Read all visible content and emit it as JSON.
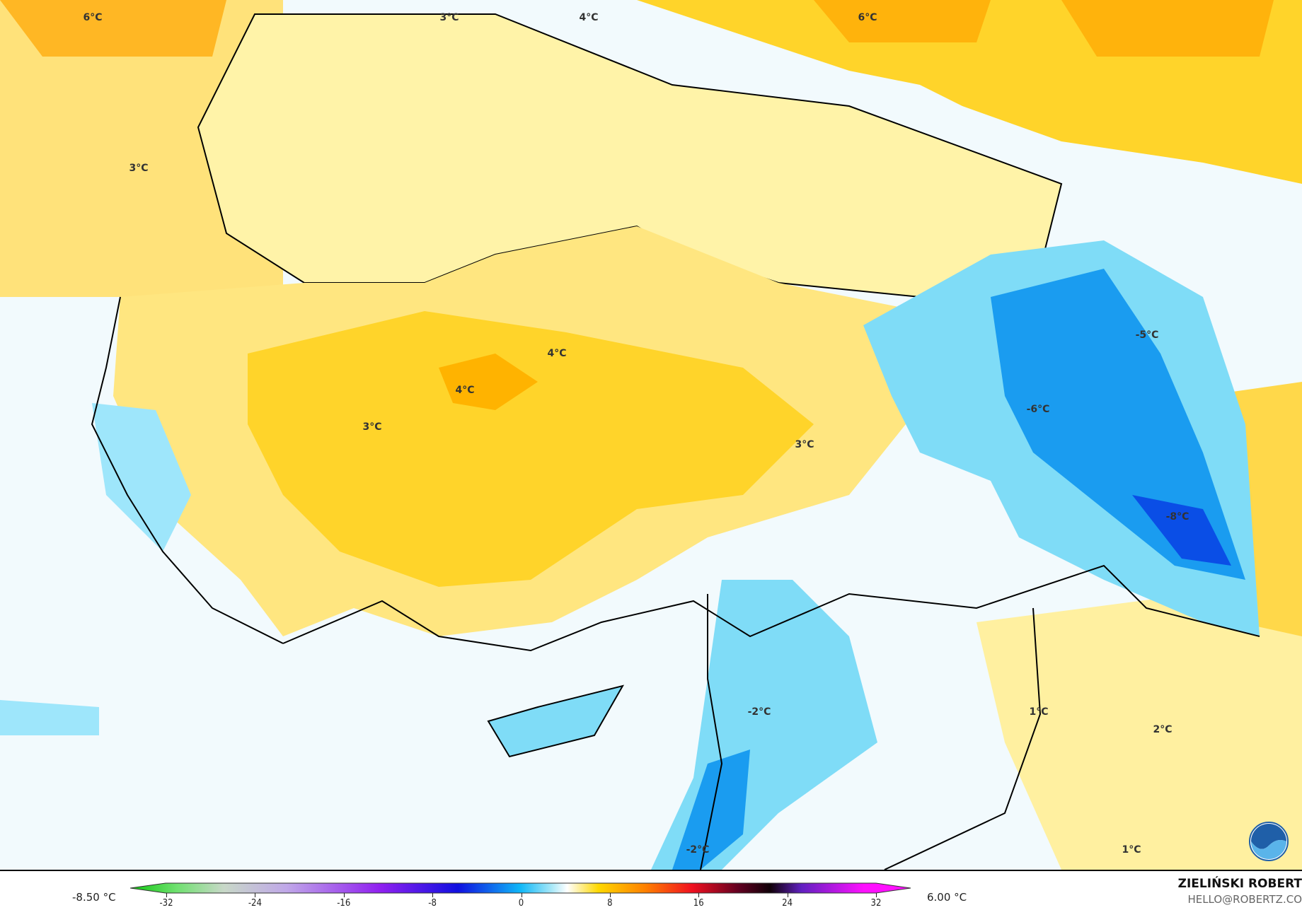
{
  "map": {
    "labels": [
      {
        "text": "6°C"
      },
      {
        "text": "3°C"
      },
      {
        "text": "4°C"
      },
      {
        "text": "6°C"
      },
      {
        "text": "3°C"
      },
      {
        "text": "4°C"
      },
      {
        "text": "4°C"
      },
      {
        "text": "3°C"
      },
      {
        "text": "3°C"
      },
      {
        "text": "-5°C"
      },
      {
        "text": "-6°C"
      },
      {
        "text": "-8°C"
      },
      {
        "text": "-2°C"
      },
      {
        "text": "1°C"
      },
      {
        "text": "2°C"
      },
      {
        "text": "1°C"
      },
      {
        "text": "-2°C"
      }
    ],
    "logo": "noaa-logo",
    "colors": {
      "warm_light": "#fff3a8",
      "warm": "#ffd42a",
      "warm_strong": "#ffa500",
      "cold_light": "#e8f6fc",
      "cold": "#7fdcf7",
      "cold_strong": "#1a9cf0",
      "cold_deep": "#0a4ee6"
    }
  },
  "legend": {
    "min_label": "-8.50 °C",
    "max_label": "6.00 °C",
    "ticks": [
      "-32",
      "-24",
      "-16",
      "-8",
      "0",
      "8",
      "16",
      "24",
      "32"
    ],
    "range": [
      -32,
      32
    ]
  },
  "credit": {
    "author": "ZIELIŃSKI ROBERT",
    "email": "HELLO@ROBERTZ.CO"
  }
}
